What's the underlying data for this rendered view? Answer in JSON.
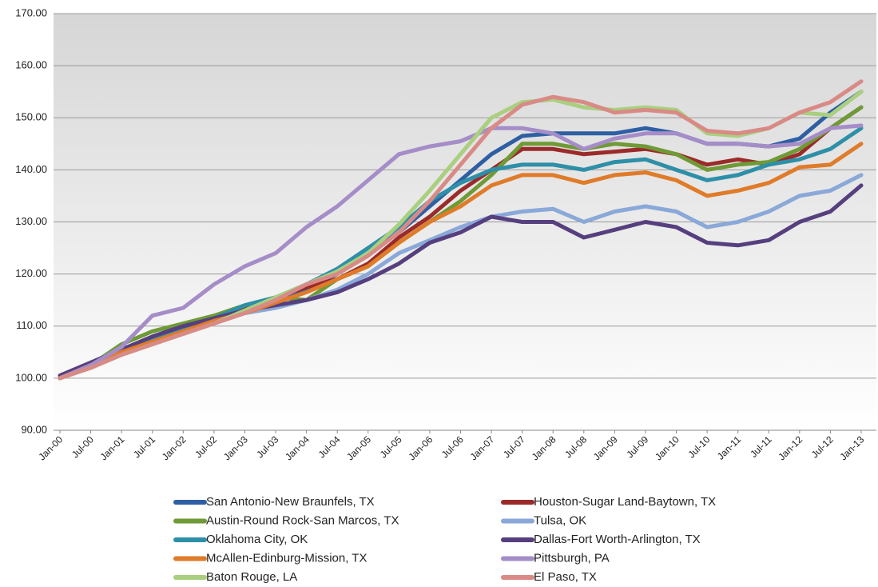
{
  "chart_data": {
    "type": "line",
    "categories": [
      "Jan-00",
      "Jul-00",
      "Jan-01",
      "Jul-01",
      "Jan-02",
      "Jul-02",
      "Jan-03",
      "Jul-03",
      "Jan-04",
      "Jul-04",
      "Jan-05",
      "Jul-05",
      "Jan-06",
      "Jul-06",
      "Jan-07",
      "Jul-07",
      "Jan-08",
      "Jul-08",
      "Jan-09",
      "Jul-09",
      "Jan-10",
      "Jul-10",
      "Jan-11",
      "Jul-11",
      "Jan-12",
      "Jul-12",
      "Jan-13"
    ],
    "ylim": [
      90,
      170
    ],
    "yticks": [
      {
        "value": 90,
        "label": "90.00"
      },
      {
        "value": 100,
        "label": "100.00"
      },
      {
        "value": 110,
        "label": "110.00"
      },
      {
        "value": 120,
        "label": "120.00"
      },
      {
        "value": 130,
        "label": "130.00"
      },
      {
        "value": 140,
        "label": "140.00"
      },
      {
        "value": 150,
        "label": "150.00"
      },
      {
        "value": 160,
        "label": "160.00"
      },
      {
        "value": 170,
        "label": "170.00"
      }
    ],
    "grid": true,
    "legend": "bottom",
    "series": [
      {
        "name": "San Antonio-New Braunfels, TX",
        "color": "#2e5fa3",
        "values": [
          100,
          102.5,
          105,
          107,
          109,
          111,
          113,
          115,
          117,
          120,
          124,
          128,
          133,
          138,
          143,
          146.5,
          147,
          147,
          147,
          148,
          147,
          145,
          145,
          144.5,
          146,
          151,
          155
        ]
      },
      {
        "name": "Houston-Sugar Land-Baytown, TX",
        "color": "#9b2a2a",
        "values": [
          100,
          102.5,
          105.5,
          107.5,
          109.5,
          111.5,
          113.5,
          115.5,
          117.5,
          119,
          122,
          127,
          131,
          136,
          140,
          144,
          144,
          143,
          143.5,
          144,
          143,
          141,
          142,
          141,
          143,
          148,
          152
        ]
      },
      {
        "name": "Austin-Round Rock-San Marcos, TX",
        "color": "#6f9a36",
        "values": [
          100,
          102.5,
          106.5,
          109,
          110.5,
          112,
          114,
          115.5,
          115,
          119,
          121.5,
          126,
          130,
          134,
          139,
          145,
          145,
          144,
          145,
          144.5,
          143,
          140,
          141,
          141.5,
          144,
          148,
          152
        ]
      },
      {
        "name": "Tulsa, OK",
        "color": "#8aa8d8",
        "values": [
          100,
          102,
          104.5,
          106.5,
          108.5,
          110.5,
          112.5,
          113.5,
          115,
          117,
          120,
          124,
          126.5,
          129,
          131,
          132,
          132.5,
          130,
          132,
          133,
          132,
          129,
          130,
          132,
          135,
          136,
          139
        ]
      },
      {
        "name": "Oklahoma City, OK",
        "color": "#2e8fa8",
        "values": [
          100,
          102.5,
          105,
          107.5,
          109.5,
          111.5,
          114,
          115.5,
          118,
          121,
          125,
          129,
          134,
          137.5,
          140,
          141,
          141,
          140,
          141.5,
          142,
          140,
          138,
          139,
          141,
          142,
          144,
          148
        ]
      },
      {
        "name": "Dallas-Fort Worth-Arlington, TX",
        "color": "#563f7e",
        "values": [
          100.5,
          103,
          105.5,
          108,
          110,
          111.5,
          113,
          114,
          115,
          116.5,
          119,
          122,
          126,
          128,
          131,
          130,
          130,
          127,
          128.5,
          130,
          129,
          126,
          125.5,
          126.5,
          130,
          132,
          137
        ]
      },
      {
        "name": "McAllen-Edinburg-Mission, TX",
        "color": "#e07b2a",
        "values": [
          100,
          102.5,
          105,
          107,
          109,
          111,
          112.5,
          114.5,
          116.5,
          119,
          121.5,
          126,
          130,
          133,
          137,
          139,
          139,
          137.5,
          139,
          139.5,
          138,
          135,
          136,
          137.5,
          140.5,
          141,
          145
        ]
      },
      {
        "name": "Pittsburgh, PA",
        "color": "#a58dc8",
        "values": [
          100,
          102.5,
          106,
          112,
          113.5,
          118,
          121.5,
          124,
          129,
          133,
          138,
          143,
          144.5,
          145.5,
          148,
          148,
          147,
          144,
          146,
          147,
          147,
          145,
          145,
          144.5,
          145,
          148,
          148.5
        ]
      },
      {
        "name": "Baton Rouge, LA",
        "color": "#a9cf7f",
        "values": [
          100,
          102,
          104.5,
          106.5,
          108.5,
          110.5,
          113,
          115.5,
          118,
          120.5,
          124,
          129.5,
          136,
          143,
          150,
          153,
          153.5,
          152,
          151.5,
          152,
          151.5,
          147,
          146.5,
          148,
          151,
          150.5,
          155
        ]
      },
      {
        "name": "El Paso, TX",
        "color": "#d98a86",
        "values": [
          100,
          102,
          104.5,
          106.5,
          108.5,
          110.5,
          112.5,
          115,
          118,
          120,
          123.5,
          128,
          134,
          141,
          148,
          152.5,
          154,
          153,
          151,
          151.5,
          151,
          147.5,
          147,
          148,
          151,
          153,
          157
        ]
      }
    ]
  }
}
